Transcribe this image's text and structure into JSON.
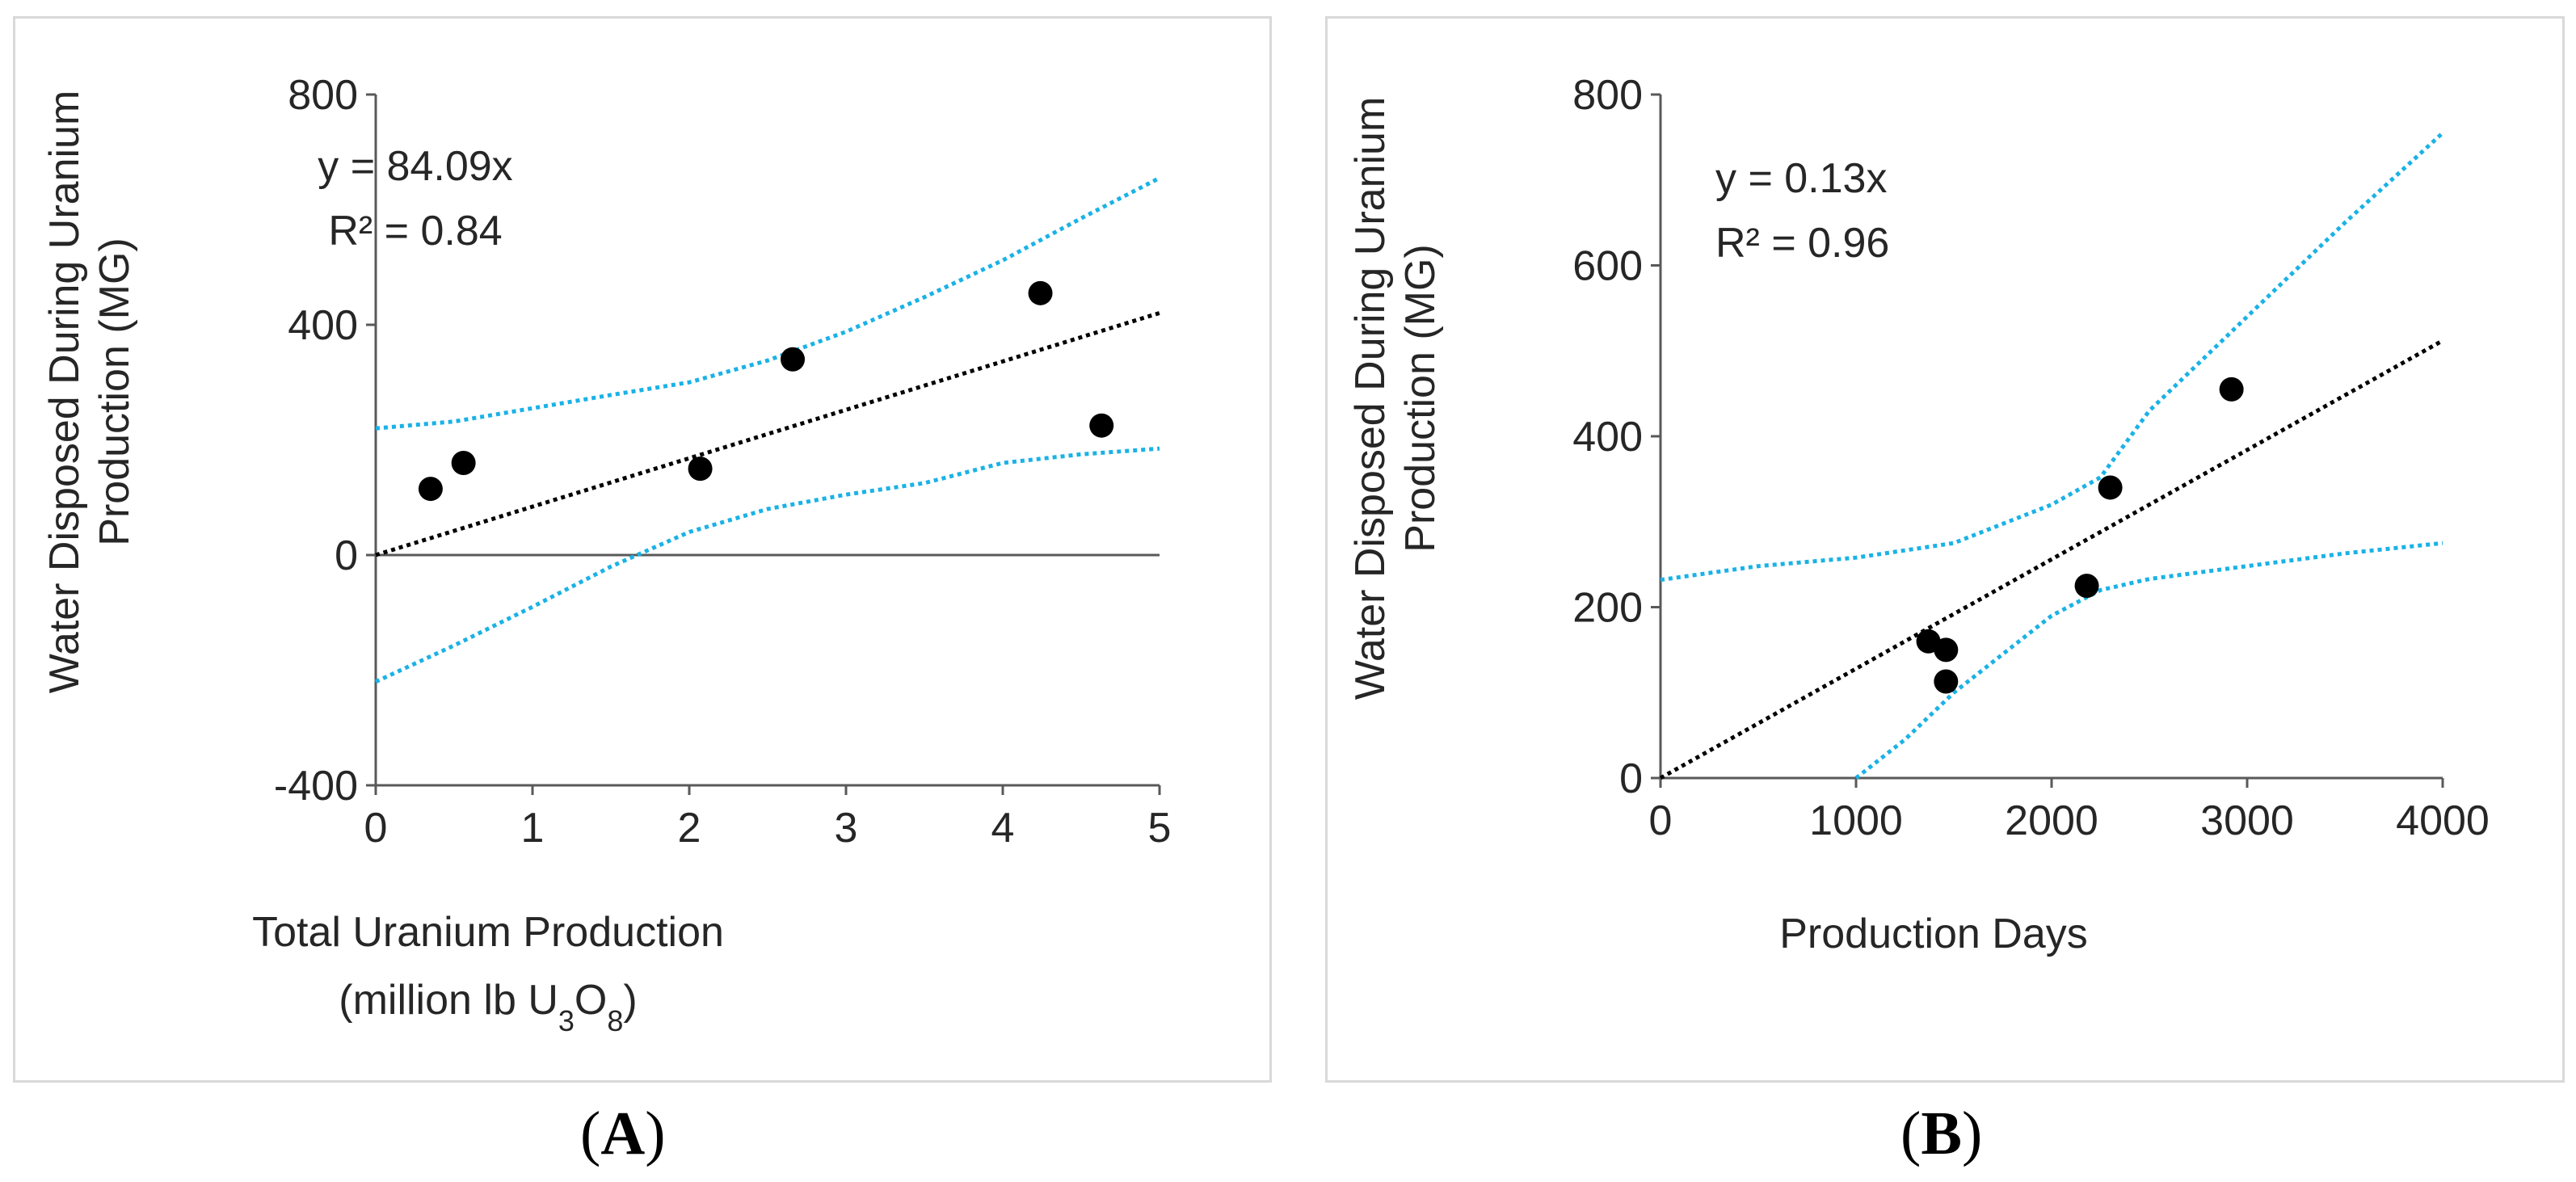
{
  "chart_data": [
    {
      "type": "scatter",
      "panel_label": "A",
      "title": "",
      "xlabel_line1": "Total Uranium Production",
      "xlabel_line2_prefix": "(million lb U",
      "xlabel_sub1": "3",
      "xlabel_mid": "O",
      "xlabel_sub2": "8",
      "xlabel_suffix": ")",
      "ylabel_line1": "Water Disposed During Uranium",
      "ylabel_line2": "Production (MG)",
      "xlim": [
        0,
        5
      ],
      "ylim": [
        -400,
        800
      ],
      "xticks": [
        "0",
        "1",
        "2",
        "3",
        "4",
        "5"
      ],
      "yticks": [
        "-400",
        "0",
        "400",
        "800"
      ],
      "xtick_values": [
        0,
        1,
        2,
        3,
        4,
        5
      ],
      "ytick_values": [
        -400,
        0,
        400,
        800
      ],
      "equation": "y = 84.09x",
      "r2": "R² = 0.84",
      "points": [
        {
          "x": 0.35,
          "y": 115
        },
        {
          "x": 0.56,
          "y": 160
        },
        {
          "x": 2.07,
          "y": 150
        },
        {
          "x": 2.66,
          "y": 340
        },
        {
          "x": 4.24,
          "y": 455
        },
        {
          "x": 4.63,
          "y": 225
        }
      ],
      "trendline": {
        "slope": 84.09,
        "x": [
          0,
          5
        ]
      },
      "upper_band": [
        [
          0,
          220
        ],
        [
          0.5,
          232
        ],
        [
          1,
          255
        ],
        [
          1.5,
          278
        ],
        [
          2,
          300
        ],
        [
          2.5,
          338
        ],
        [
          3,
          388
        ],
        [
          3.5,
          448
        ],
        [
          4,
          512
        ],
        [
          4.5,
          585
        ],
        [
          5,
          655
        ]
      ],
      "lower_band": [
        [
          0,
          -220
        ],
        [
          0.5,
          -157
        ],
        [
          1,
          -90
        ],
        [
          1.5,
          -20
        ],
        [
          2,
          40
        ],
        [
          2.5,
          80
        ],
        [
          3,
          105
        ],
        [
          3.5,
          125
        ],
        [
          4,
          160
        ],
        [
          4.5,
          175
        ],
        [
          5,
          185
        ]
      ],
      "colors": {
        "points": "#000000",
        "trendline": "#000000",
        "bands": "#1ab2e6"
      }
    },
    {
      "type": "scatter",
      "panel_label": "B",
      "title": "",
      "xlabel": "Production Days",
      "ylabel_line1": "Water Disposed During Uranium",
      "ylabel_line2": "Production (MG)",
      "xlim": [
        0,
        4000
      ],
      "ylim": [
        0,
        800
      ],
      "xticks": [
        "0",
        "1000",
        "2000",
        "3000",
        "4000"
      ],
      "yticks": [
        "0",
        "200",
        "400",
        "600",
        "800"
      ],
      "xtick_values": [
        0,
        1000,
        2000,
        3000,
        4000
      ],
      "ytick_values": [
        0,
        200,
        400,
        600,
        800
      ],
      "equation": "y = 0.13x",
      "r2": "R² = 0.96",
      "points": [
        {
          "x": 1370,
          "y": 160
        },
        {
          "x": 1460,
          "y": 150
        },
        {
          "x": 1460,
          "y": 113
        },
        {
          "x": 2180,
          "y": 225
        },
        {
          "x": 2300,
          "y": 340
        },
        {
          "x": 2920,
          "y": 455
        }
      ],
      "trendline": {
        "slope": 0.128,
        "x": [
          0,
          4000
        ]
      },
      "upper_band": [
        [
          0,
          232
        ],
        [
          500,
          248
        ],
        [
          1000,
          258
        ],
        [
          1500,
          275
        ],
        [
          2000,
          320
        ],
        [
          2250,
          352
        ],
        [
          2500,
          430
        ],
        [
          3000,
          540
        ],
        [
          3500,
          650
        ],
        [
          4000,
          755
        ]
      ],
      "lower_band": [
        [
          1000,
          0
        ],
        [
          1250,
          45
        ],
        [
          1500,
          100
        ],
        [
          2000,
          190
        ],
        [
          2250,
          220
        ],
        [
          2500,
          233
        ],
        [
          3000,
          248
        ],
        [
          3500,
          263
        ],
        [
          4000,
          275
        ]
      ],
      "colors": {
        "points": "#000000",
        "trendline": "#000000",
        "bands": "#1ab2e6"
      }
    }
  ]
}
